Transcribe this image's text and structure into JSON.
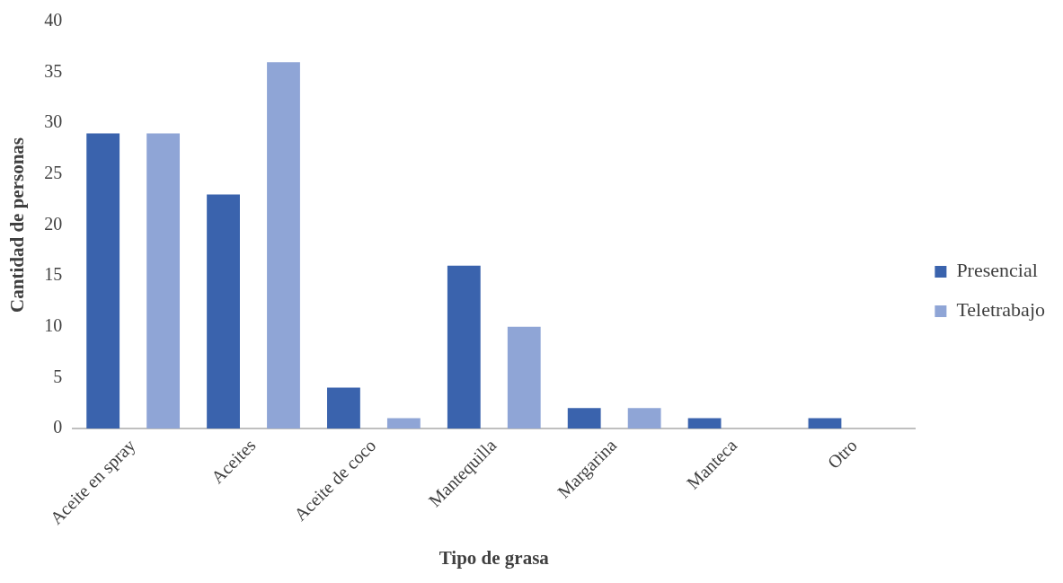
{
  "chart_data": {
    "type": "bar",
    "xlabel": "Tipo de grasa",
    "ylabel": "Cantidad de personas",
    "categories": [
      "Aceite en spray",
      "Aceites",
      "Aceite de coco",
      "Mantequilla",
      "Margarina",
      "Manteca",
      "Otro"
    ],
    "series": [
      {
        "name": "Presencial",
        "color": "#3a63ad",
        "values": [
          29,
          23,
          4,
          16,
          2,
          1,
          1
        ]
      },
      {
        "name": "Teletrabajo",
        "color": "#8fa5d6",
        "values": [
          29,
          36,
          1,
          10,
          2,
          0,
          0
        ]
      }
    ],
    "ylim": [
      0,
      40
    ],
    "yticks": [
      0,
      5,
      10,
      15,
      20,
      25,
      30,
      35,
      40
    ],
    "grid": false,
    "legend": "right"
  }
}
